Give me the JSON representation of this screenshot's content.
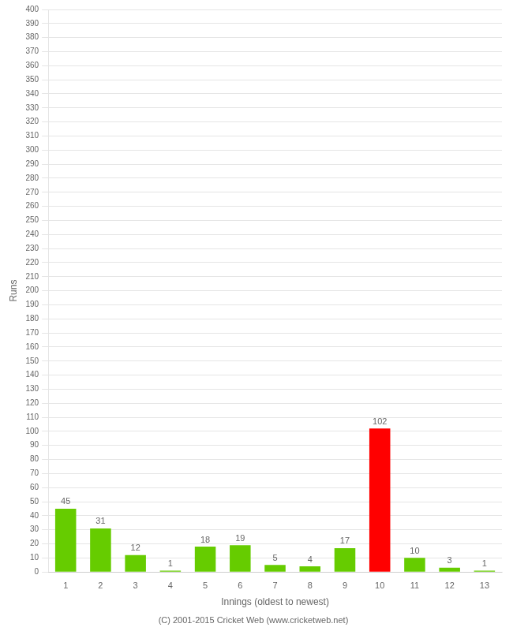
{
  "chart_data": {
    "type": "bar",
    "xlabel": "Innings (oldest to newest)",
    "ylabel": "Runs",
    "footer": "(C) 2001-2015 Cricket Web (www.cricketweb.net)",
    "categories": [
      1,
      2,
      3,
      4,
      5,
      6,
      7,
      8,
      9,
      10,
      11,
      12,
      13
    ],
    "values": [
      45,
      31,
      12,
      1,
      18,
      19,
      5,
      4,
      17,
      102,
      10,
      3,
      1
    ],
    "colors": [
      "#66cc00",
      "#66cc00",
      "#66cc00",
      "#66cc00",
      "#66cc00",
      "#66cc00",
      "#66cc00",
      "#66cc00",
      "#66cc00",
      "#ff0000",
      "#66cc00",
      "#66cc00",
      "#66cc00"
    ],
    "ylim": [
      0,
      400
    ],
    "yticks": [
      0,
      10,
      20,
      30,
      40,
      50,
      60,
      70,
      80,
      90,
      100,
      110,
      120,
      130,
      140,
      150,
      160,
      170,
      180,
      190,
      200,
      210,
      220,
      230,
      240,
      250,
      260,
      270,
      280,
      290,
      300,
      310,
      320,
      330,
      340,
      350,
      360,
      370,
      380,
      390,
      400
    ],
    "grid": true,
    "data_labels": true
  }
}
